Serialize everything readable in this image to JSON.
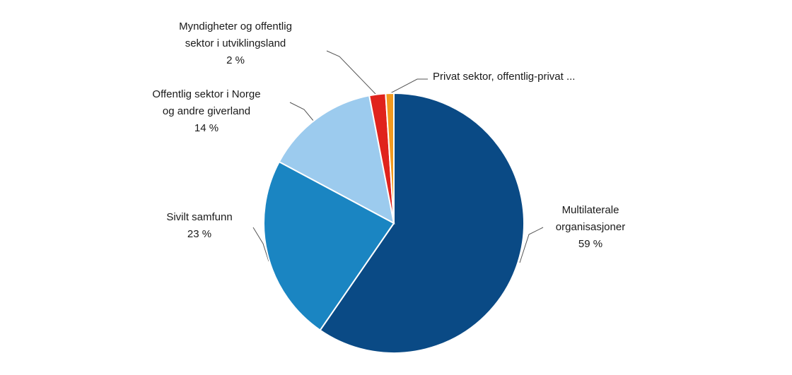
{
  "chart_data": {
    "type": "pie",
    "categories": [
      "Multilaterale\norganisasjoner",
      "Sivilt samfunn",
      "Offentlig sektor i Norge\nog andre giverland",
      "Myndigheter og offentlig\nsektor i utviklingsland",
      "Privat sektor, offentlig-privat ..."
    ],
    "values": [
      59,
      23,
      14,
      2,
      1
    ],
    "value_labels": [
      "59 %",
      "23 %",
      "14 %",
      "2 %",
      null
    ],
    "colors": [
      "#0a4a85",
      "#1a85c2",
      "#9ccbee",
      "#e0231c",
      "#f39a1e"
    ]
  }
}
